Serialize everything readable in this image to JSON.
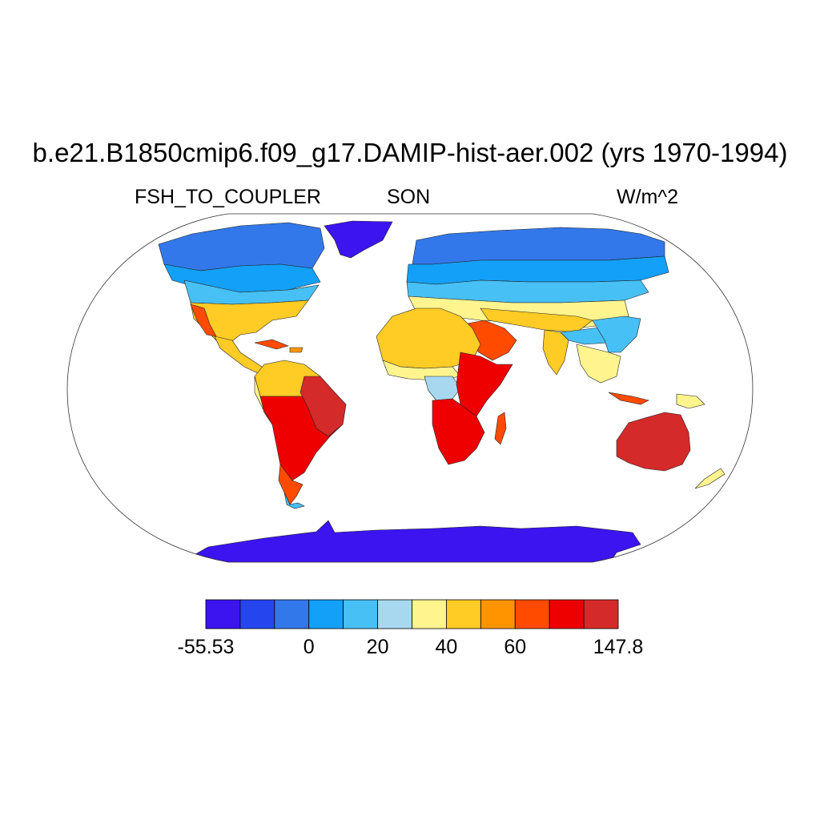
{
  "title": "b.e21.B1850cmip6.f09_g17.DAMIP-hist-aer.002 (yrs 1970-1994)",
  "subtitle_left": "FSH_TO_COUPLER",
  "subtitle_center": "SON",
  "subtitle_right": "W/m^2",
  "colorbar": {
    "colors": [
      "#3b14f0",
      "#2546ee",
      "#3278ea",
      "#13a0f8",
      "#47c0f5",
      "#a8d8ef",
      "#fff48e",
      "#ffcb25",
      "#ff9400",
      "#ff4b00",
      "#ee0000",
      "#d42a2a"
    ],
    "labels": [
      "-55.53",
      "0",
      "20",
      "40",
      "60",
      "147.8"
    ],
    "label_boundary_index": [
      0,
      3,
      5,
      7,
      9,
      12
    ]
  },
  "map": {
    "projection": "Robinson",
    "field_colors": {
      "polar_cold": "#3b14f0",
      "cold": "#2546ee",
      "cool": "#3278ea",
      "mild": "#13a0f8",
      "temperate": "#47c0f5",
      "pale": "#a8d8ef",
      "warm": "#fff48e",
      "warmer": "#ffcb25",
      "hot": "#ff9400",
      "hotter": "#ff4b00",
      "very_hot": "#ee0000",
      "extreme": "#d42a2a"
    }
  }
}
